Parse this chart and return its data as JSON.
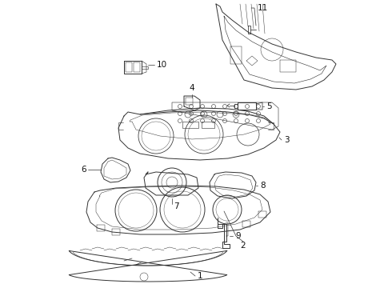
{
  "bg_color": "#ffffff",
  "line_color": "#333333",
  "lw": 0.7,
  "fig_w": 4.9,
  "fig_h": 3.6,
  "dpi": 100
}
